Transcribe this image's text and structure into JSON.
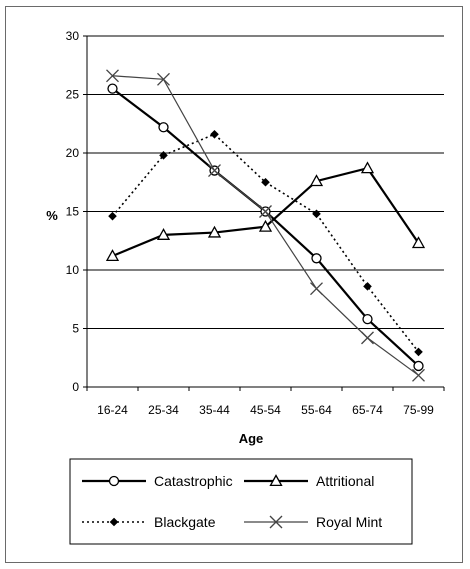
{
  "chart_data": {
    "type": "line",
    "title": "",
    "xlabel": "Age",
    "ylabel": "%",
    "categories": [
      "16-24",
      "25-34",
      "35-44",
      "45-54",
      "55-64",
      "65-74",
      "75-99"
    ],
    "yticks": [
      "0",
      "5",
      "10",
      "15",
      "20",
      "25",
      "30"
    ],
    "ylim": [
      0,
      30
    ],
    "grid": "horizontal",
    "legend_position": "bottom",
    "series": [
      {
        "name": "Catastrophic",
        "values": [
          25.5,
          22.2,
          18.5,
          15.0,
          11.0,
          5.8,
          1.8
        ],
        "color": "#000000",
        "line_style": "solid",
        "marker": "circle"
      },
      {
        "name": "Attritional",
        "values": [
          11.2,
          13.0,
          13.2,
          13.7,
          17.6,
          18.7,
          12.3
        ],
        "color": "#000000",
        "line_style": "solid",
        "marker": "triangle"
      },
      {
        "name": "Blackgate",
        "values": [
          14.6,
          19.8,
          21.6,
          17.5,
          14.8,
          8.6,
          3.0
        ],
        "color": "#000000",
        "line_style": "dotted",
        "marker": "diamond"
      },
      {
        "name": "Royal Mint",
        "values": [
          26.6,
          26.3,
          18.5,
          15.0,
          8.4,
          4.2,
          1.0
        ],
        "color": "#444444",
        "line_style": "solid-thin",
        "marker": "x"
      }
    ]
  }
}
